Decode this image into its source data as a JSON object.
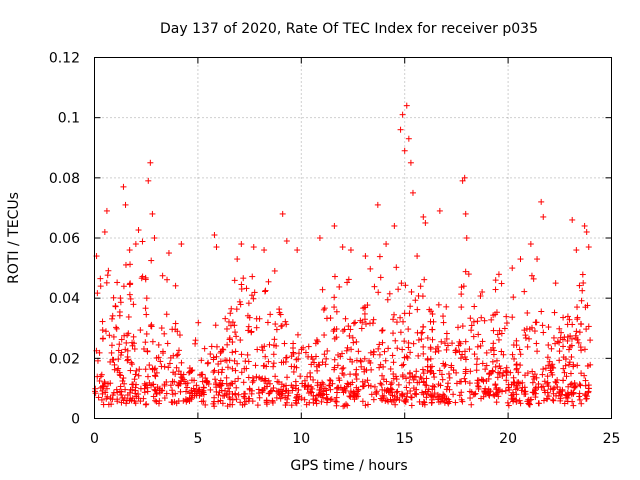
{
  "chart_data": {
    "type": "scatter",
    "title": "Day 137 of 2020, Rate Of TEC Index for receiver p035",
    "xlabel": "GPS time / hours",
    "ylabel": "ROTI / TECUs",
    "xlim": [
      0,
      25
    ],
    "ylim": [
      0,
      0.12
    ],
    "x_ticks": [
      0,
      5,
      10,
      15,
      20,
      25
    ],
    "x_tick_labels": [
      "0",
      "5",
      "10",
      "15",
      "20",
      "25"
    ],
    "y_ticks": [
      0,
      0.02,
      0.04,
      0.06,
      0.08,
      0.1,
      0.12
    ],
    "y_tick_labels": [
      "0",
      "0.02",
      "0.04",
      "0.06",
      "0.08",
      "0.1",
      "0.12"
    ],
    "grid": true,
    "marker": "+",
    "color": "#ff0000",
    "points": [
      [
        0.1,
        0.054
      ],
      [
        0.3,
        0.044
      ],
      [
        0.5,
        0.062
      ],
      [
        0.6,
        0.069
      ],
      [
        1.4,
        0.077
      ],
      [
        1.5,
        0.071
      ],
      [
        1.7,
        0.056
      ],
      [
        2.0,
        0.058
      ],
      [
        2.6,
        0.079
      ],
      [
        2.7,
        0.085
      ],
      [
        2.8,
        0.068
      ],
      [
        2.9,
        0.06
      ],
      [
        3.6,
        0.055
      ],
      [
        4.2,
        0.058
      ],
      [
        5.8,
        0.061
      ],
      [
        5.9,
        0.057
      ],
      [
        6.9,
        0.053
      ],
      [
        7.1,
        0.058
      ],
      [
        7.7,
        0.057
      ],
      [
        8.2,
        0.056
      ],
      [
        9.1,
        0.068
      ],
      [
        9.3,
        0.059
      ],
      [
        9.8,
        0.056
      ],
      [
        10.9,
        0.06
      ],
      [
        11.6,
        0.064
      ],
      [
        12.0,
        0.057
      ],
      [
        12.4,
        0.056
      ],
      [
        13.1,
        0.054
      ],
      [
        13.7,
        0.071
      ],
      [
        14.1,
        0.058
      ],
      [
        14.5,
        0.064
      ],
      [
        14.8,
        0.096
      ],
      [
        14.9,
        0.101
      ],
      [
        15.0,
        0.089
      ],
      [
        15.1,
        0.104
      ],
      [
        15.2,
        0.093
      ],
      [
        15.3,
        0.085
      ],
      [
        15.4,
        0.075
      ],
      [
        15.6,
        0.054
      ],
      [
        15.9,
        0.067
      ],
      [
        16.0,
        0.065
      ],
      [
        16.7,
        0.069
      ],
      [
        17.8,
        0.079
      ],
      [
        17.9,
        0.08
      ],
      [
        17.95,
        0.068
      ],
      [
        18.0,
        0.06
      ],
      [
        18.1,
        0.048
      ],
      [
        19.4,
        0.046
      ],
      [
        20.2,
        0.05
      ],
      [
        20.6,
        0.053
      ],
      [
        21.1,
        0.058
      ],
      [
        21.4,
        0.053
      ],
      [
        21.6,
        0.072
      ],
      [
        21.7,
        0.067
      ],
      [
        22.3,
        0.045
      ],
      [
        23.1,
        0.066
      ],
      [
        23.3,
        0.056
      ],
      [
        23.7,
        0.064
      ],
      [
        23.8,
        0.062
      ],
      [
        23.9,
        0.057
      ]
    ]
  }
}
